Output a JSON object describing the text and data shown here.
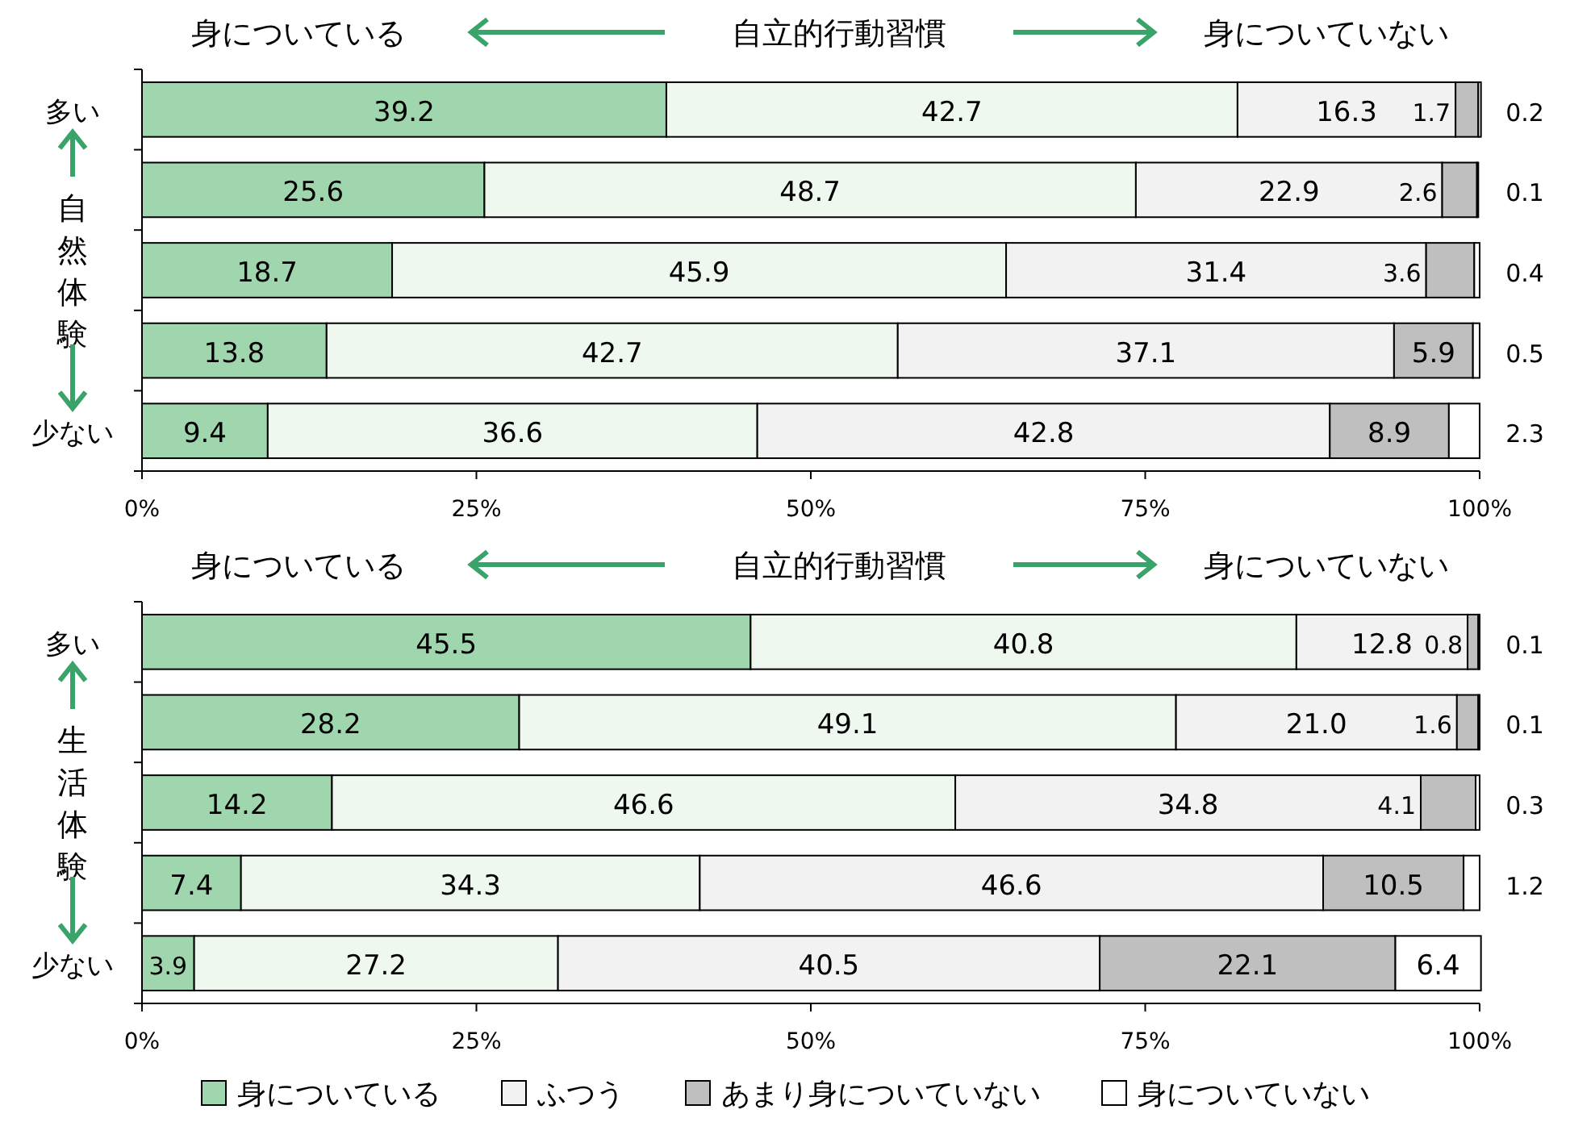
{
  "chart_data": [
    {
      "type": "bar",
      "orientation": "horizontal",
      "stacked": true,
      "title": "自立的行動習慣",
      "annotations": [
        "身についている",
        "身についていない"
      ],
      "ylabel": "自然体験",
      "categories": [
        "多い",
        null,
        null,
        null,
        "少ない"
      ],
      "xlim": [
        0,
        100
      ],
      "xticks": [
        {
          "value": 0,
          "label": "0%"
        },
        {
          "value": 25,
          "label": "25%"
        },
        {
          "value": 50,
          "label": "50%"
        },
        {
          "value": 75,
          "label": "75%"
        },
        {
          "value": 100,
          "label": "100%"
        }
      ],
      "series": [
        {
          "color": "#9fd6ad",
          "values": [
            39.2,
            25.6,
            18.7,
            13.8,
            9.4
          ],
          "value_labels": [
            "39.2",
            "25.6",
            "18.7",
            "13.8",
            "9.4"
          ]
        },
        {
          "color": "#eef8ef",
          "values": [
            42.7,
            48.7,
            45.9,
            42.7,
            36.6
          ],
          "value_labels": [
            "42.7",
            "48.7",
            "45.9",
            "42.7",
            "36.6"
          ]
        },
        {
          "color": "#f2f2f2",
          "values": [
            16.3,
            22.9,
            31.4,
            37.1,
            42.8
          ],
          "value_labels": [
            "16.3",
            "22.9",
            "31.4",
            "37.1",
            "42.8"
          ]
        },
        {
          "color": "#bfbfbf",
          "values": [
            1.7,
            2.6,
            3.6,
            5.9,
            8.9
          ],
          "value_labels": [
            "1.7",
            "2.6",
            "3.6",
            "5.9",
            "8.9"
          ]
        },
        {
          "color": "#ffffff",
          "values": [
            0.2,
            0.1,
            0.4,
            0.5,
            2.3
          ],
          "value_labels": [
            "0.2",
            "0.1",
            "0.4",
            "0.5",
            "2.3"
          ]
        }
      ]
    },
    {
      "type": "bar",
      "orientation": "horizontal",
      "stacked": true,
      "title": "自立的行動習慣",
      "annotations": [
        "身についている",
        "身についていない"
      ],
      "ylabel": "生活体験",
      "categories": [
        "多い",
        null,
        null,
        null,
        "少ない"
      ],
      "xlim": [
        0,
        100
      ],
      "xticks": [
        {
          "value": 0,
          "label": "0%"
        },
        {
          "value": 25,
          "label": "25%"
        },
        {
          "value": 50,
          "label": "50%"
        },
        {
          "value": 75,
          "label": "75%"
        },
        {
          "value": 100,
          "label": "100%"
        }
      ],
      "legend": "bottom",
      "series": [
        {
          "name": "身についている",
          "color": "#9fd6ad",
          "values": [
            45.5,
            28.2,
            14.2,
            7.4,
            3.9
          ],
          "value_labels": [
            "45.5",
            "28.2",
            "14.2",
            "7.4",
            "3.9"
          ]
        },
        {
          "color": "#eef8ef",
          "values": [
            40.8,
            49.1,
            46.6,
            34.3,
            27.2
          ],
          "value_labels": [
            "40.8",
            "49.1",
            "46.6",
            "34.3",
            "27.2"
          ]
        },
        {
          "name": "ふつう",
          "color": "#f2f2f2",
          "values": [
            12.8,
            21.0,
            34.8,
            46.6,
            40.5
          ],
          "value_labels": [
            "12.8",
            "21.0",
            "34.8",
            "46.6",
            "40.5"
          ]
        },
        {
          "name": "あまり身についていない",
          "color": "#bfbfbf",
          "values": [
            0.8,
            1.6,
            4.1,
            10.5,
            22.1
          ],
          "value_labels": [
            "0.8",
            "1.6",
            "4.1",
            "10.5",
            "22.1"
          ]
        },
        {
          "name": "身についていない",
          "color": "#ffffff",
          "values": [
            0.1,
            0.1,
            0.3,
            1.2,
            6.4
          ],
          "value_labels": [
            "0.1",
            "0.1",
            "0.3",
            "1.2",
            "6.4"
          ]
        }
      ]
    }
  ]
}
